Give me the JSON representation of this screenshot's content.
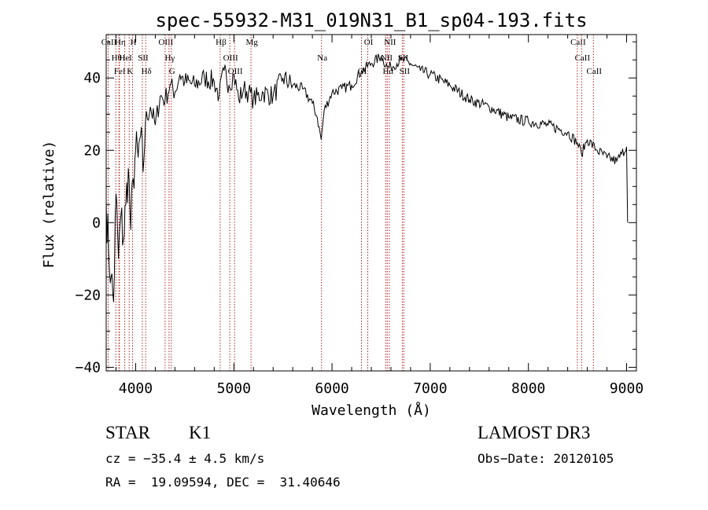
{
  "chart_data": {
    "type": "line",
    "title": "spec-55932-M31_019N31_B1_sp04-193.fits",
    "xlabel": "Wavelength (Å)",
    "ylabel": "Flux (relative)",
    "xlim": [
      3700,
      9100
    ],
    "ylim": [
      -41,
      52
    ],
    "x_ticks": [
      4000,
      5000,
      6000,
      7000,
      8000,
      9000
    ],
    "x_tick_labels": [
      "4000",
      "5000",
      "6000",
      "7000",
      "8000",
      "9000"
    ],
    "y_ticks": [
      -40,
      -20,
      0,
      20,
      40
    ],
    "y_tick_labels": [
      "−40",
      "−20",
      "0",
      "20",
      "40"
    ],
    "grid": false,
    "series": [
      {
        "name": "spectrum",
        "x": [
          3700,
          3725,
          3750,
          3775,
          3800,
          3825,
          3850,
          3875,
          3900,
          3925,
          3950,
          3975,
          4000,
          4025,
          4050,
          4075,
          4100,
          4150,
          4200,
          4250,
          4300,
          4350,
          4400,
          4450,
          4500,
          4600,
          4700,
          4800,
          4850,
          4900,
          4950,
          5000,
          5050,
          5100,
          5150,
          5200,
          5300,
          5400,
          5500,
          5600,
          5700,
          5800,
          5850,
          5890,
          5920,
          6000,
          6100,
          6200,
          6300,
          6400,
          6500,
          6563,
          6600,
          6700,
          6800,
          6900,
          7000,
          7200,
          7400,
          7600,
          7800,
          8000,
          8200,
          8400,
          8500,
          8540,
          8600,
          8700,
          8800,
          8900,
          8950,
          9000,
          9010
        ],
        "y": [
          6,
          -8,
          -15,
          -22,
          8,
          -10,
          2,
          -5,
          5,
          15,
          -2,
          12,
          20,
          18,
          24,
          14,
          28,
          32,
          27,
          35,
          34,
          38,
          36,
          41,
          39,
          38,
          40,
          39,
          35,
          42,
          38,
          41,
          34,
          37,
          36,
          34,
          36,
          35,
          40,
          38,
          37,
          33,
          29,
          23,
          31,
          36,
          37,
          38,
          42,
          44,
          46,
          43,
          43,
          45,
          44,
          42,
          41,
          38,
          34,
          32,
          29,
          28,
          27,
          25,
          22,
          19,
          23,
          20,
          18,
          17,
          19,
          21,
          0
        ]
      }
    ],
    "lines": [
      {
        "name": "CaII",
        "wavelength": 3720
      },
      {
        "name": "Hθ",
        "wavelength": 3798
      },
      {
        "name": "FeI",
        "wavelength": 3830
      },
      {
        "name": "Hη",
        "wavelength": 3835
      },
      {
        "name": "HeI",
        "wavelength": 3889
      },
      {
        "name": "K",
        "wavelength": 3934
      },
      {
        "name": "H",
        "wavelength": 3968
      },
      {
        "name": "SII",
        "wavelength": 4068
      },
      {
        "name": "Hδ",
        "wavelength": 4102
      },
      {
        "name": "OIII",
        "wavelength": 4300
      },
      {
        "name": "Hγ",
        "wavelength": 4340
      },
      {
        "name": "G",
        "wavelength": 4363
      },
      {
        "name": "Hβ",
        "wavelength": 4861
      },
      {
        "name": "OIII",
        "wavelength": 4959
      },
      {
        "name": "OIII",
        "wavelength": 5007
      },
      {
        "name": "Mg",
        "wavelength": 5175
      },
      {
        "name": "Na",
        "wavelength": 5893
      },
      {
        "name": "OI",
        "wavelength": 6300
      },
      {
        "name": "OI",
        "wavelength": 6364
      },
      {
        "name": "NII",
        "wavelength": 6548
      },
      {
        "name": "Hα",
        "wavelength": 6563
      },
      {
        "name": "NII",
        "wavelength": 6583
      },
      {
        "name": "SII",
        "wavelength": 6716
      },
      {
        "name": "SII",
        "wavelength": 6731
      },
      {
        "name": "CaII",
        "wavelength": 8498
      },
      {
        "name": "CaII",
        "wavelength": 8542
      },
      {
        "name": "CaII",
        "wavelength": 8662
      }
    ],
    "line_color": "#b22222"
  },
  "info": {
    "object_class": "STAR",
    "subclass": "K1",
    "survey": "LAMOST DR3",
    "cz": "cz = −35.4 ± 4.5 km/s",
    "obs_date": "Obs−Date: 20120105",
    "coords": "RA =  19.09594, DEC =  31.40646"
  }
}
